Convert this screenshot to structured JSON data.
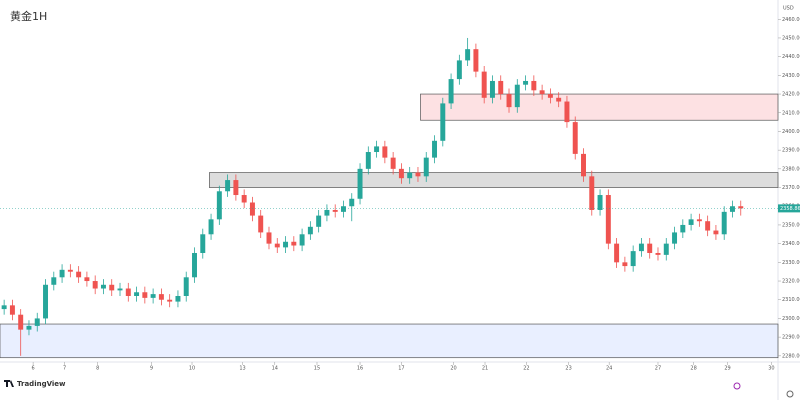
{
  "chart_data": {
    "type": "candlestick",
    "title": "黄金1H",
    "currency": "USD",
    "brand": "TradingView",
    "up_color": "#26a69a",
    "down_color": "#ef5350",
    "open": [
      2305,
      2307,
      2302,
      2294,
      2296,
      2300,
      2318,
      2322,
      2326,
      2325,
      2322,
      2320,
      2316,
      2318,
      2315,
      2316,
      2312,
      2314,
      2311,
      2313,
      2310,
      2309,
      2312,
      2322,
      2335,
      2345,
      2353,
      2368,
      2374,
      2366,
      2362,
      2355,
      2346,
      2340,
      2338,
      2341,
      2339,
      2345,
      2349,
      2355,
      2358,
      2357,
      2360,
      2364,
      2380,
      2389,
      2392,
      2386,
      2380,
      2375,
      2378,
      2376,
      2386,
      2395,
      2415,
      2428,
      2438,
      2444,
      2432,
      2418,
      2427,
      2420,
      2413,
      2425,
      2427,
      2422,
      2420,
      2418,
      2416,
      2405,
      2388,
      2376,
      2358,
      2366,
      2340,
      2330,
      2328,
      2336,
      2340,
      2335,
      2334,
      2340,
      2346,
      2350,
      2353,
      2352,
      2347,
      2345,
      2357,
      2360
    ],
    "high": [
      2310,
      2310,
      2305,
      2299,
      2303,
      2321,
      2325,
      2329,
      2329,
      2328,
      2325,
      2323,
      2321,
      2321,
      2319,
      2319,
      2317,
      2317,
      2316,
      2316,
      2313,
      2315,
      2325,
      2338,
      2348,
      2356,
      2371,
      2377,
      2377,
      2369,
      2365,
      2358,
      2349,
      2343,
      2344,
      2344,
      2348,
      2352,
      2358,
      2361,
      2361,
      2363,
      2367,
      2383,
      2392,
      2395,
      2395,
      2389,
      2383,
      2381,
      2381,
      2389,
      2398,
      2418,
      2431,
      2441,
      2450,
      2447,
      2435,
      2430,
      2430,
      2423,
      2428,
      2430,
      2430,
      2425,
      2423,
      2421,
      2419,
      2408,
      2391,
      2379,
      2369,
      2369,
      2343,
      2333,
      2339,
      2343,
      2343,
      2338,
      2343,
      2349,
      2353,
      2356,
      2356,
      2355,
      2350,
      2360,
      2363,
      2363
    ],
    "low": [
      2302,
      2299,
      2280,
      2291,
      2293,
      2297,
      2315,
      2319,
      2322,
      2319,
      2317,
      2313,
      2313,
      2312,
      2312,
      2309,
      2309,
      2308,
      2308,
      2307,
      2306,
      2306,
      2309,
      2319,
      2332,
      2342,
      2350,
      2365,
      2363,
      2359,
      2352,
      2343,
      2337,
      2335,
      2335,
      2336,
      2336,
      2342,
      2346,
      2352,
      2354,
      2354,
      2352,
      2361,
      2377,
      2386,
      2383,
      2377,
      2372,
      2372,
      2373,
      2373,
      2383,
      2392,
      2412,
      2425,
      2435,
      2429,
      2415,
      2415,
      2417,
      2410,
      2410,
      2422,
      2419,
      2417,
      2415,
      2413,
      2402,
      2385,
      2373,
      2355,
      2355,
      2337,
      2327,
      2325,
      2325,
      2333,
      2332,
      2331,
      2331,
      2337,
      2343,
      2347,
      2349,
      2344,
      2342,
      2342,
      2354,
      2355
    ],
    "close": [
      2307,
      2302,
      2294,
      2296,
      2300,
      2318,
      2322,
      2326,
      2325,
      2322,
      2320,
      2316,
      2318,
      2315,
      2316,
      2312,
      2314,
      2311,
      2313,
      2310,
      2309,
      2312,
      2322,
      2335,
      2345,
      2353,
      2368,
      2374,
      2366,
      2362,
      2355,
      2346,
      2340,
      2338,
      2341,
      2339,
      2345,
      2349,
      2355,
      2358,
      2357,
      2360,
      2364,
      2380,
      2389,
      2392,
      2386,
      2380,
      2375,
      2378,
      2376,
      2386,
      2395,
      2415,
      2428,
      2438,
      2444,
      2432,
      2418,
      2427,
      2420,
      2413,
      2425,
      2427,
      2422,
      2420,
      2418,
      2416,
      2405,
      2388,
      2376,
      2358,
      2366,
      2340,
      2330,
      2328,
      2336,
      2340,
      2335,
      2334,
      2340,
      2346,
      2350,
      2353,
      2352,
      2347,
      2345,
      2357,
      2360,
      2358.86
    ],
    "last_price_label": "2358.86",
    "xlim": [
      -0.5,
      93.5
    ],
    "xticks": [
      {
        "value": 3.5,
        "label": "6"
      },
      {
        "value": 7.3,
        "label": "7"
      },
      {
        "value": 11.3,
        "label": "8"
      },
      {
        "value": 17.8,
        "label": "9"
      },
      {
        "value": 22.7,
        "label": "10"
      },
      {
        "value": 28.8,
        "label": "13"
      },
      {
        "value": 32.7,
        "label": "14"
      },
      {
        "value": 37.8,
        "label": "15"
      },
      {
        "value": 43,
        "label": "16"
      },
      {
        "value": 48,
        "label": "17"
      },
      {
        "value": 54.3,
        "label": "20"
      },
      {
        "value": 58.1,
        "label": "21"
      },
      {
        "value": 63.1,
        "label": "22"
      },
      {
        "value": 68.2,
        "label": "23"
      },
      {
        "value": 73.1,
        "label": "24"
      },
      {
        "value": 79,
        "label": "27"
      },
      {
        "value": 83.3,
        "label": "28"
      },
      {
        "value": 87.4,
        "label": "29"
      },
      {
        "value": 92.7,
        "label": "30"
      }
    ],
    "ylim": [
      2276.7,
      2470.3
    ],
    "yticks": [
      {
        "value": 2280,
        "label": "2280.00"
      },
      {
        "value": 2290,
        "label": "2290.00"
      },
      {
        "value": 2300,
        "label": "2300.00"
      },
      {
        "value": 2310,
        "label": "2310.00"
      },
      {
        "value": 2320,
        "label": "2320.00"
      },
      {
        "value": 2330,
        "label": "2330.00"
      },
      {
        "value": 2340,
        "label": "2340.00"
      },
      {
        "value": 2350,
        "label": "2350.00"
      },
      {
        "value": 2360,
        "label": "2360.00"
      },
      {
        "value": 2370,
        "label": "2370.00"
      },
      {
        "value": 2380,
        "label": "2380.00"
      },
      {
        "value": 2390,
        "label": "2390.00"
      },
      {
        "value": 2400,
        "label": "2400.00"
      },
      {
        "value": 2410,
        "label": "2410.00"
      },
      {
        "value": 2420,
        "label": "2420.00"
      },
      {
        "value": 2430,
        "label": "2430.00"
      },
      {
        "value": 2440,
        "label": "2440.00"
      },
      {
        "value": 2450,
        "label": "2450.00"
      },
      {
        "value": 2460,
        "label": "2460.00"
      }
    ],
    "zones": [
      {
        "low": 2406,
        "high": 2420,
        "start": 50.3,
        "color": "rgba(242,54,69,0.15)"
      },
      {
        "low": 2370,
        "high": 2378,
        "start": 24.8,
        "color": "rgba(120,120,120,0.25)"
      },
      {
        "low": 2279,
        "high": 2297,
        "start": -0.5,
        "color": "rgba(41,98,255,0.10)"
      }
    ]
  }
}
